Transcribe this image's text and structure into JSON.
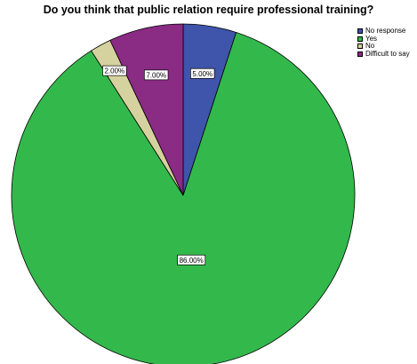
{
  "chart_data": {
    "type": "pie",
    "title": "Do you think that public relation require professional training?",
    "categories": [
      "No response",
      "Yes",
      "No",
      "Difficult to say"
    ],
    "values": [
      5.0,
      86.0,
      2.0,
      7.0
    ],
    "data_labels": [
      "5.00%",
      "86.00%",
      "2.00%",
      "7.00%"
    ],
    "colors": [
      "#3f54ab",
      "#33b94b",
      "#d6d29f",
      "#8a2b84"
    ],
    "start_angle": "12 o'clock",
    "direction": "clockwise",
    "legend": "top-right"
  }
}
